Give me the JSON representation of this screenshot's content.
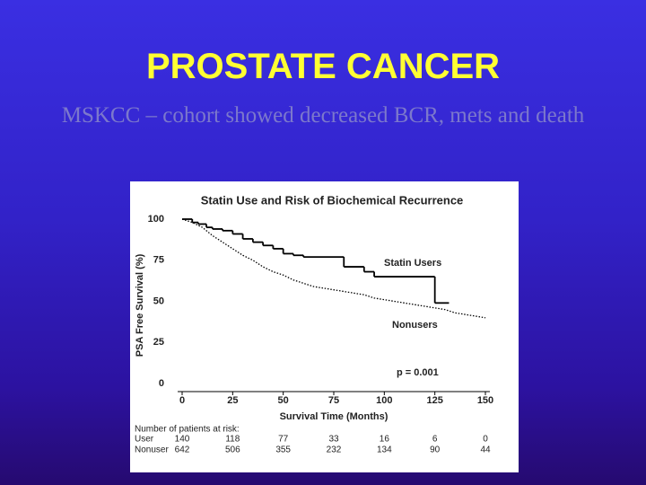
{
  "slide": {
    "title": "PROSTATE CANCER",
    "subtitle": "MSKCC – cohort showed decreased BCR, mets and death"
  },
  "chart_data": {
    "type": "line",
    "title": "Statin Use and Risk of Biochemical Recurrence",
    "x_label": "Survival Time (Months)",
    "y_label": "PSA Free Survival (%)",
    "xlim": [
      0,
      150
    ],
    "ylim": [
      0,
      100
    ],
    "xticks": [
      0,
      25,
      50,
      75,
      100,
      125,
      150
    ],
    "yticks": [
      0,
      25,
      50,
      75,
      100
    ],
    "grid": false,
    "series": [
      {
        "name": "Statin Users",
        "color": "#000000",
        "step": true,
        "dashed": false,
        "x": [
          0,
          5,
          8,
          12,
          15,
          20,
          25,
          30,
          35,
          40,
          45,
          50,
          55,
          60,
          80,
          90,
          95,
          125,
          132
        ],
        "values": [
          100,
          98,
          97,
          95,
          94,
          93,
          91,
          88,
          86,
          84,
          82,
          79,
          78,
          77,
          71,
          68,
          65,
          49,
          49
        ]
      },
      {
        "name": "Nonusers",
        "color": "#000000",
        "step": false,
        "dashed": true,
        "x": [
          0,
          5,
          10,
          15,
          20,
          25,
          30,
          35,
          40,
          45,
          50,
          55,
          60,
          65,
          70,
          75,
          80,
          85,
          90,
          95,
          100,
          105,
          110,
          115,
          120,
          125,
          130,
          135,
          140,
          150
        ],
        "values": [
          100,
          98,
          95,
          90,
          86,
          82,
          78,
          75,
          71,
          68,
          66,
          63,
          61,
          59,
          58,
          57,
          56,
          55,
          54,
          52,
          51,
          50,
          49,
          48,
          47,
          46,
          45,
          43,
          42,
          40
        ]
      }
    ],
    "annotation": "p = 0.001",
    "risk_table": {
      "title": "Number of patients at risk:",
      "rows": [
        {
          "label": "User",
          "values": [
            140,
            118,
            77,
            33,
            16,
            6,
            0
          ]
        },
        {
          "label": "Nonuser",
          "values": [
            642,
            506,
            355,
            232,
            134,
            90,
            44
          ]
        }
      ]
    }
  }
}
